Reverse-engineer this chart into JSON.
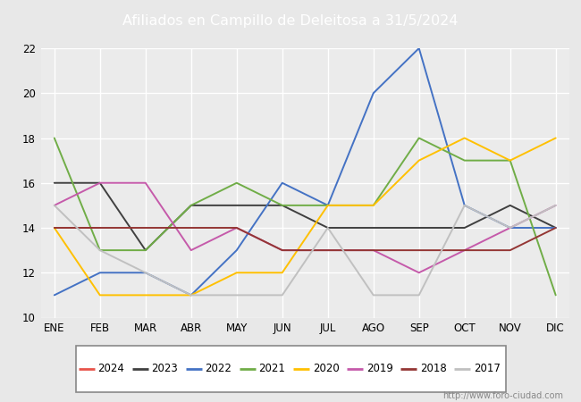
{
  "title": "Afiliados en Campillo de Deleitosa a 31/5/2024",
  "title_bg_color": "#4e7bc4",
  "title_text_color": "white",
  "ylim": [
    10,
    22
  ],
  "yticks": [
    10,
    12,
    14,
    16,
    18,
    20,
    22
  ],
  "months": [
    "ENE",
    "FEB",
    "MAR",
    "ABR",
    "MAY",
    "JUN",
    "JUL",
    "AGO",
    "SEP",
    "OCT",
    "NOV",
    "DIC"
  ],
  "watermark": "http://www.foro-ciudad.com",
  "series": {
    "2024": {
      "color": "#e8534a",
      "data": [
        14,
        14,
        null,
        null,
        null,
        null,
        null,
        null,
        null,
        null,
        null,
        null
      ]
    },
    "2023": {
      "color": "#404040",
      "data": [
        16,
        16,
        13,
        15,
        15,
        15,
        14,
        14,
        14,
        14,
        15,
        14
      ]
    },
    "2022": {
      "color": "#4472c4",
      "data": [
        11,
        12,
        12,
        11,
        13,
        16,
        15,
        20,
        22,
        15,
        14,
        14
      ]
    },
    "2021": {
      "color": "#70ad47",
      "data": [
        18,
        13,
        13,
        15,
        16,
        15,
        15,
        15,
        18,
        17,
        17,
        11
      ]
    },
    "2020": {
      "color": "#ffc000",
      "data": [
        14,
        11,
        11,
        11,
        12,
        12,
        15,
        15,
        17,
        18,
        17,
        18
      ]
    },
    "2019": {
      "color": "#c55aaa",
      "data": [
        15,
        16,
        16,
        13,
        14,
        13,
        13,
        13,
        12,
        13,
        14,
        15
      ]
    },
    "2018": {
      "color": "#943634",
      "data": [
        14,
        14,
        14,
        14,
        14,
        13,
        13,
        13,
        13,
        13,
        13,
        14
      ]
    },
    "2017": {
      "color": "#c0c0c0",
      "data": [
        15,
        13,
        12,
        11,
        11,
        11,
        14,
        11,
        11,
        15,
        14,
        15
      ]
    }
  },
  "legend_order": [
    "2024",
    "2023",
    "2022",
    "2021",
    "2020",
    "2019",
    "2018",
    "2017"
  ],
  "background_color": "#e8e8e8",
  "plot_bg_color": "#ebebeb"
}
